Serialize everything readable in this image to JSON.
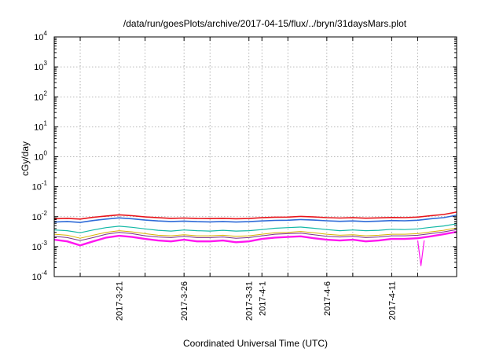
{
  "chart_data": {
    "type": "line",
    "title": "/data/run/goesPlots/archive/2017-04-15/flux/../bryn/31daysMars.plot",
    "xlabel": "Coordinated Universal Time (UTC)",
    "ylabel": "cGy/day",
    "x_range": [
      "2017-03-16T00:00",
      "2017-04-16T00:00"
    ],
    "y_scale": "log",
    "ylim": [
      0.0001,
      10000
    ],
    "y_ticks": [
      {
        "value": 0.0001,
        "base": "10",
        "exp": "-4"
      },
      {
        "value": 0.001,
        "base": "10",
        "exp": "-3"
      },
      {
        "value": 0.01,
        "base": "10",
        "exp": "-2"
      },
      {
        "value": 0.1,
        "base": "10",
        "exp": "-1"
      },
      {
        "value": 1,
        "base": "10",
        "exp": "0"
      },
      {
        "value": 10,
        "base": "10",
        "exp": "1"
      },
      {
        "value": 100,
        "base": "10",
        "exp": "2"
      },
      {
        "value": 1000,
        "base": "10",
        "exp": "3"
      },
      {
        "value": 10000,
        "base": "10",
        "exp": "4"
      }
    ],
    "x_ticks": [
      {
        "date": "2017-03-21",
        "label": "2017-3-21"
      },
      {
        "date": "2017-03-26",
        "label": "2017-3-26"
      },
      {
        "date": "2017-03-31",
        "label": "2017-3-31"
      },
      {
        "date": "2017-04-01",
        "label": "2017-4-1"
      },
      {
        "date": "2017-04-06",
        "label": "2017-4-6"
      },
      {
        "date": "2017-04-11",
        "label": "2017-4-11"
      }
    ],
    "x_grid_dates": [
      "2017-03-18",
      "2017-03-21",
      "2017-03-23",
      "2017-03-26",
      "2017-03-28",
      "2017-03-31",
      "2017-04-01",
      "2017-04-03",
      "2017-04-06",
      "2017-04-08",
      "2017-04-11",
      "2017-04-13"
    ],
    "grid": true,
    "series": [
      {
        "color": "#e8151b",
        "width": 1.6,
        "points": [
          [
            "2017-03-16",
            0.0085
          ],
          [
            "2017-03-17",
            0.0088
          ],
          [
            "2017-03-18",
            0.0083
          ],
          [
            "2017-03-19",
            0.0095
          ],
          [
            "2017-03-20",
            0.0105
          ],
          [
            "2017-03-21",
            0.0115
          ],
          [
            "2017-03-22",
            0.0108
          ],
          [
            "2017-03-23",
            0.0098
          ],
          [
            "2017-03-24",
            0.0092
          ],
          [
            "2017-03-25",
            0.0088
          ],
          [
            "2017-03-26",
            0.009
          ],
          [
            "2017-03-27",
            0.0087
          ],
          [
            "2017-03-28",
            0.0086
          ],
          [
            "2017-03-29",
            0.0088
          ],
          [
            "2017-03-30",
            0.0085
          ],
          [
            "2017-03-31",
            0.0087
          ],
          [
            "2017-04-01",
            0.0092
          ],
          [
            "2017-04-02",
            0.0096
          ],
          [
            "2017-04-03",
            0.0097
          ],
          [
            "2017-04-04",
            0.0102
          ],
          [
            "2017-04-05",
            0.0098
          ],
          [
            "2017-04-06",
            0.0093
          ],
          [
            "2017-04-07",
            0.009
          ],
          [
            "2017-04-08",
            0.0092
          ],
          [
            "2017-04-09",
            0.0089
          ],
          [
            "2017-04-10",
            0.0091
          ],
          [
            "2017-04-11",
            0.0094
          ],
          [
            "2017-04-12",
            0.0093
          ],
          [
            "2017-04-13",
            0.0097
          ],
          [
            "2017-04-14",
            0.0108
          ],
          [
            "2017-04-15",
            0.0118
          ],
          [
            "2017-04-16",
            0.0142
          ]
        ]
      },
      {
        "color": "#2f6bd8",
        "width": 1.6,
        "points": [
          [
            "2017-03-16",
            0.0066
          ],
          [
            "2017-03-17",
            0.0069
          ],
          [
            "2017-03-18",
            0.0064
          ],
          [
            "2017-03-19",
            0.0074
          ],
          [
            "2017-03-20",
            0.0083
          ],
          [
            "2017-03-21",
            0.0091
          ],
          [
            "2017-03-22",
            0.0085
          ],
          [
            "2017-03-23",
            0.0077
          ],
          [
            "2017-03-24",
            0.0072
          ],
          [
            "2017-03-25",
            0.0069
          ],
          [
            "2017-03-26",
            0.0071
          ],
          [
            "2017-03-27",
            0.0068
          ],
          [
            "2017-03-28",
            0.0067
          ],
          [
            "2017-03-29",
            0.0069
          ],
          [
            "2017-03-30",
            0.0066
          ],
          [
            "2017-03-31",
            0.0068
          ],
          [
            "2017-04-01",
            0.0072
          ],
          [
            "2017-04-02",
            0.0075
          ],
          [
            "2017-04-03",
            0.0076
          ],
          [
            "2017-04-04",
            0.008
          ],
          [
            "2017-04-05",
            0.0077
          ],
          [
            "2017-04-06",
            0.0073
          ],
          [
            "2017-04-07",
            0.007
          ],
          [
            "2017-04-08",
            0.0072
          ],
          [
            "2017-04-09",
            0.0069
          ],
          [
            "2017-04-10",
            0.0071
          ],
          [
            "2017-04-11",
            0.0074
          ],
          [
            "2017-04-12",
            0.0073
          ],
          [
            "2017-04-13",
            0.0076
          ],
          [
            "2017-04-14",
            0.0085
          ],
          [
            "2017-04-15",
            0.0093
          ],
          [
            "2017-04-16",
            0.0112
          ]
        ]
      },
      {
        "color": "#12b8a6",
        "width": 1.2,
        "points": [
          [
            "2017-03-16",
            0.0036
          ],
          [
            "2017-03-17",
            0.0034
          ],
          [
            "2017-03-18",
            0.0029
          ],
          [
            "2017-03-19",
            0.0036
          ],
          [
            "2017-03-20",
            0.0043
          ],
          [
            "2017-03-21",
            0.0048
          ],
          [
            "2017-03-22",
            0.0044
          ],
          [
            "2017-03-23",
            0.0039
          ],
          [
            "2017-03-24",
            0.0035
          ],
          [
            "2017-03-25",
            0.0033
          ],
          [
            "2017-03-26",
            0.0036
          ],
          [
            "2017-03-27",
            0.0034
          ],
          [
            "2017-03-28",
            0.0033
          ],
          [
            "2017-03-29",
            0.0035
          ],
          [
            "2017-03-30",
            0.0033
          ],
          [
            "2017-03-31",
            0.0034
          ],
          [
            "2017-04-01",
            0.0037
          ],
          [
            "2017-04-02",
            0.0041
          ],
          [
            "2017-04-03",
            0.0043
          ],
          [
            "2017-04-04",
            0.0045
          ],
          [
            "2017-04-05",
            0.0041
          ],
          [
            "2017-04-06",
            0.0037
          ],
          [
            "2017-04-07",
            0.0034
          ],
          [
            "2017-04-08",
            0.0036
          ],
          [
            "2017-04-09",
            0.0034
          ],
          [
            "2017-04-10",
            0.0035
          ],
          [
            "2017-04-11",
            0.0038
          ],
          [
            "2017-04-12",
            0.0037
          ],
          [
            "2017-04-13",
            0.0039
          ],
          [
            "2017-04-14",
            0.0044
          ],
          [
            "2017-04-15",
            0.0049
          ],
          [
            "2017-04-16",
            0.0058
          ]
        ]
      },
      {
        "color": "#d9b400",
        "width": 1.0,
        "points": [
          [
            "2017-03-16",
            0.0026
          ],
          [
            "2017-03-17",
            0.0024
          ],
          [
            "2017-03-18",
            0.0019
          ],
          [
            "2017-03-19",
            0.0024
          ],
          [
            "2017-03-20",
            0.003
          ],
          [
            "2017-03-21",
            0.0034
          ],
          [
            "2017-03-22",
            0.0031
          ],
          [
            "2017-03-23",
            0.0027
          ],
          [
            "2017-03-24",
            0.0024
          ],
          [
            "2017-03-25",
            0.0023
          ],
          [
            "2017-03-26",
            0.0025
          ],
          [
            "2017-03-27",
            0.0023
          ],
          [
            "2017-03-28",
            0.0023
          ],
          [
            "2017-03-29",
            0.0024
          ],
          [
            "2017-03-30",
            0.0022
          ],
          [
            "2017-03-31",
            0.0023
          ],
          [
            "2017-04-01",
            0.0026
          ],
          [
            "2017-04-02",
            0.0029
          ],
          [
            "2017-04-03",
            0.003
          ],
          [
            "2017-04-04",
            0.0032
          ],
          [
            "2017-04-05",
            0.0029
          ],
          [
            "2017-04-06",
            0.0026
          ],
          [
            "2017-04-07",
            0.0024
          ],
          [
            "2017-04-08",
            0.0025
          ],
          [
            "2017-04-09",
            0.0023
          ],
          [
            "2017-04-10",
            0.0024
          ],
          [
            "2017-04-11",
            0.0026
          ],
          [
            "2017-04-12",
            0.0026
          ],
          [
            "2017-04-13",
            0.0027
          ],
          [
            "2017-04-14",
            0.0031
          ],
          [
            "2017-04-15",
            0.0035
          ],
          [
            "2017-04-16",
            0.0042
          ]
        ]
      },
      {
        "color": "#7a2d8c",
        "width": 1.0,
        "points": [
          [
            "2017-03-16",
            0.0022
          ],
          [
            "2017-03-17",
            0.002
          ],
          [
            "2017-03-18",
            0.0016
          ],
          [
            "2017-03-19",
            0.002
          ],
          [
            "2017-03-20",
            0.0026
          ],
          [
            "2017-03-21",
            0.003
          ],
          [
            "2017-03-22",
            0.0027
          ],
          [
            "2017-03-23",
            0.0023
          ],
          [
            "2017-03-24",
            0.0021
          ],
          [
            "2017-03-25",
            0.002
          ],
          [
            "2017-03-26",
            0.0022
          ],
          [
            "2017-03-27",
            0.002
          ],
          [
            "2017-03-28",
            0.002
          ],
          [
            "2017-03-29",
            0.0021
          ],
          [
            "2017-03-30",
            0.0019
          ],
          [
            "2017-03-31",
            0.002
          ],
          [
            "2017-04-01",
            0.0023
          ],
          [
            "2017-04-02",
            0.0026
          ],
          [
            "2017-04-03",
            0.0027
          ],
          [
            "2017-04-04",
            0.0028
          ],
          [
            "2017-04-05",
            0.0025
          ],
          [
            "2017-04-06",
            0.0022
          ],
          [
            "2017-04-07",
            0.0021
          ],
          [
            "2017-04-08",
            0.0022
          ],
          [
            "2017-04-09",
            0.002
          ],
          [
            "2017-04-10",
            0.0021
          ],
          [
            "2017-04-11",
            0.0023
          ],
          [
            "2017-04-12",
            0.0023
          ],
          [
            "2017-04-13",
            0.0024
          ],
          [
            "2017-04-14",
            0.0027
          ],
          [
            "2017-04-15",
            0.0031
          ],
          [
            "2017-04-16",
            0.0037
          ]
        ]
      },
      {
        "color": "#ff16f0",
        "width": 2.4,
        "points": [
          [
            "2017-03-16",
            0.0017
          ],
          [
            "2017-03-17",
            0.0015
          ],
          [
            "2017-03-18",
            0.0011
          ],
          [
            "2017-03-19",
            0.0015
          ],
          [
            "2017-03-20",
            0.002
          ],
          [
            "2017-03-21",
            0.0023
          ],
          [
            "2017-03-22",
            0.0021
          ],
          [
            "2017-03-23",
            0.0018
          ],
          [
            "2017-03-24",
            0.0016
          ],
          [
            "2017-03-25",
            0.0015
          ],
          [
            "2017-03-26",
            0.0017
          ],
          [
            "2017-03-27",
            0.0015
          ],
          [
            "2017-03-28",
            0.0015
          ],
          [
            "2017-03-29",
            0.0016
          ],
          [
            "2017-03-30",
            0.0014
          ],
          [
            "2017-03-31",
            0.0015
          ],
          [
            "2017-04-01",
            0.0018
          ],
          [
            "2017-04-02",
            0.002
          ],
          [
            "2017-04-03",
            0.0021
          ],
          [
            "2017-04-04",
            0.0022
          ],
          [
            "2017-04-05",
            0.0019
          ],
          [
            "2017-04-06",
            0.0017
          ],
          [
            "2017-04-07",
            0.0016
          ],
          [
            "2017-04-08",
            0.0017
          ],
          [
            "2017-04-09",
            0.0015
          ],
          [
            "2017-04-10",
            0.0016
          ],
          [
            "2017-04-11",
            0.0018
          ],
          [
            "2017-04-12",
            0.0018
          ],
          [
            "2017-04-13",
            0.0019
          ],
          [
            "2017-04-14",
            0.0022
          ],
          [
            "2017-04-15",
            0.0026
          ],
          [
            "2017-04-16",
            0.0031
          ]
        ]
      },
      {
        "color": "#ff16f0",
        "width": 1.2,
        "points": [
          [
            "2017-04-13T00:00",
            0.0016
          ],
          [
            "2017-04-13T06:00",
            0.00023
          ],
          [
            "2017-04-13T12:00",
            0.0016
          ]
        ]
      }
    ]
  }
}
